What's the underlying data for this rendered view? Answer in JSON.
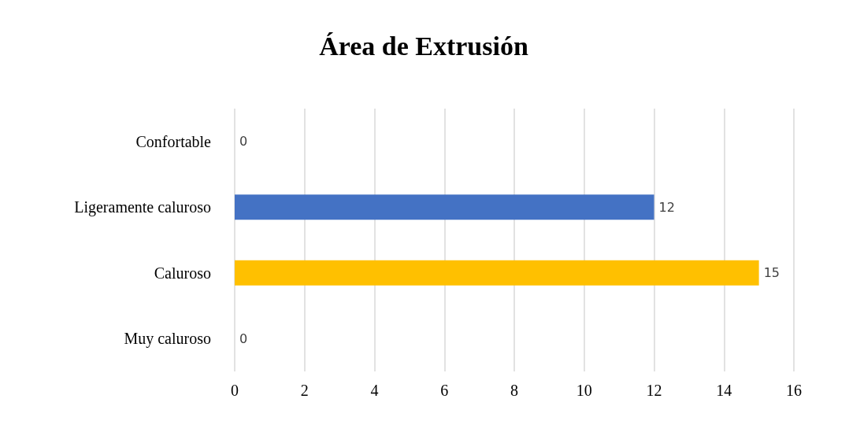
{
  "chart_data": {
    "type": "bar",
    "orientation": "horizontal",
    "title": "Área de Extrusión",
    "categories": [
      "Confortable",
      "Ligeramente caluroso",
      "Caluroso",
      "Muy caluroso"
    ],
    "values": [
      0,
      12,
      15,
      0
    ],
    "colors": [
      "#c00000",
      "#4472c4",
      "#ffc000",
      "#548235"
    ],
    "xlim": [
      0,
      16
    ],
    "xticks": [
      0,
      2,
      4,
      6,
      8,
      10,
      12,
      14,
      16
    ],
    "grid": "x",
    "data_labels": true
  }
}
